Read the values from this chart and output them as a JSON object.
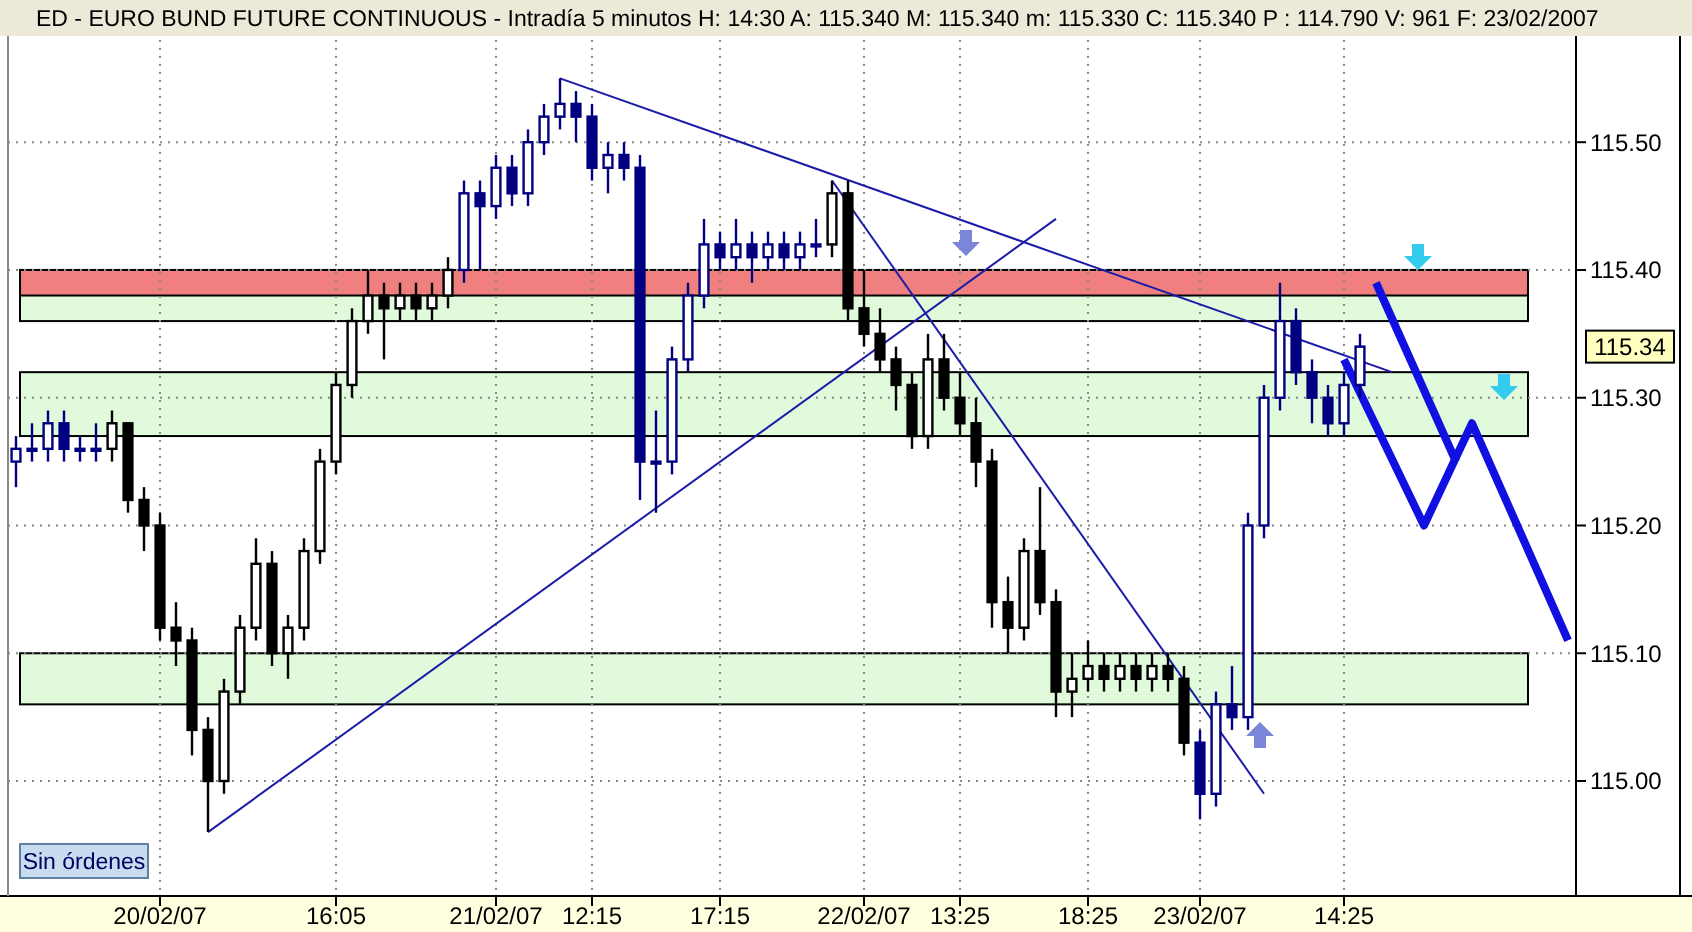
{
  "chart_data": {
    "type": "candlestick",
    "title": "ED - EURO BUND FUTURE CONTINUOUS - Intradía 5 minutos  H: 14:30  A: 115.340  M: 115.340  m: 115.330  C: 115.340  P : 114.790  V: 961  F: 23/02/2007",
    "categories": [
      null,
      null,
      null,
      null,
      null,
      null,
      null,
      null,
      null,
      "20/02/07",
      null,
      null,
      null,
      null,
      null,
      null,
      null,
      null,
      null,
      null,
      "16:05",
      null,
      null,
      null,
      null,
      null,
      null,
      null,
      null,
      null,
      "21/02/07",
      null,
      null,
      null,
      null,
      null,
      "12:15",
      null,
      null,
      null,
      null,
      null,
      null,
      null,
      "17:15",
      null,
      null,
      null,
      null,
      null,
      null,
      null,
      null,
      "22/02/07",
      null,
      null,
      null,
      null,
      null,
      "13:25",
      null,
      null,
      null,
      null,
      null,
      null,
      null,
      "18:25",
      null,
      null,
      null,
      null,
      null,
      null,
      "23/02/07",
      null,
      null,
      null,
      null,
      null,
      null,
      null,
      null,
      "14:25",
      null,
      null,
      null,
      null,
      null,
      null,
      null,
      null,
      null,
      null,
      null,
      null,
      null,
      null
    ],
    "ohlc": [
      [
        115.25,
        115.27,
        115.23,
        115.26
      ],
      [
        115.26,
        115.28,
        115.25,
        115.26
      ],
      [
        115.26,
        115.29,
        115.25,
        115.28
      ],
      [
        115.28,
        115.29,
        115.25,
        115.26
      ],
      [
        115.26,
        115.27,
        115.25,
        115.26
      ],
      [
        115.26,
        115.28,
        115.25,
        115.26
      ],
      [
        115.26,
        115.29,
        115.25,
        115.28
      ],
      [
        115.28,
        115.28,
        115.21,
        115.22
      ],
      [
        115.22,
        115.23,
        115.18,
        115.2
      ],
      [
        115.2,
        115.21,
        115.11,
        115.12
      ],
      [
        115.12,
        115.14,
        115.09,
        115.11
      ],
      [
        115.11,
        115.12,
        115.02,
        115.04
      ],
      [
        115.04,
        115.05,
        114.96,
        115
      ],
      [
        115,
        115.08,
        114.99,
        115.07
      ],
      [
        115.07,
        115.13,
        115.06,
        115.12
      ],
      [
        115.12,
        115.19,
        115.11,
        115.17
      ],
      [
        115.17,
        115.18,
        115.09,
        115.1
      ],
      [
        115.1,
        115.13,
        115.08,
        115.12
      ],
      [
        115.12,
        115.19,
        115.11,
        115.18
      ],
      [
        115.18,
        115.26,
        115.17,
        115.25
      ],
      [
        115.25,
        115.32,
        115.24,
        115.31
      ],
      [
        115.31,
        115.37,
        115.3,
        115.36
      ],
      [
        115.36,
        115.4,
        115.35,
        115.38
      ],
      [
        115.38,
        115.39,
        115.33,
        115.37
      ],
      [
        115.37,
        115.39,
        115.36,
        115.38
      ],
      [
        115.38,
        115.39,
        115.36,
        115.37
      ],
      [
        115.37,
        115.39,
        115.36,
        115.38
      ],
      [
        115.38,
        115.41,
        115.37,
        115.4
      ],
      [
        115.4,
        115.47,
        115.39,
        115.46
      ],
      [
        115.46,
        115.47,
        115.4,
        115.45
      ],
      [
        115.45,
        115.49,
        115.44,
        115.48
      ],
      [
        115.48,
        115.49,
        115.45,
        115.46
      ],
      [
        115.46,
        115.51,
        115.45,
        115.5
      ],
      [
        115.5,
        115.53,
        115.49,
        115.52
      ],
      [
        115.52,
        115.55,
        115.51,
        115.53
      ],
      [
        115.53,
        115.54,
        115.5,
        115.52
      ],
      [
        115.52,
        115.53,
        115.47,
        115.48
      ],
      [
        115.48,
        115.5,
        115.46,
        115.49
      ],
      [
        115.49,
        115.5,
        115.47,
        115.48
      ],
      [
        115.48,
        115.49,
        115.22,
        115.25
      ],
      [
        115.25,
        115.29,
        115.21,
        115.25
      ],
      [
        115.25,
        115.34,
        115.24,
        115.33
      ],
      [
        115.33,
        115.39,
        115.32,
        115.38
      ],
      [
        115.38,
        115.44,
        115.37,
        115.42
      ],
      [
        115.42,
        115.43,
        115.4,
        115.41
      ],
      [
        115.41,
        115.44,
        115.4,
        115.42
      ],
      [
        115.42,
        115.43,
        115.39,
        115.41
      ],
      [
        115.41,
        115.43,
        115.4,
        115.42
      ],
      [
        115.42,
        115.43,
        115.4,
        115.41
      ],
      [
        115.41,
        115.43,
        115.4,
        115.42
      ],
      [
        115.42,
        115.44,
        115.41,
        115.42
      ],
      [
        115.42,
        115.47,
        115.41,
        115.46
      ],
      [
        115.46,
        115.47,
        115.36,
        115.37
      ],
      [
        115.37,
        115.4,
        115.34,
        115.35
      ],
      [
        115.35,
        115.37,
        115.32,
        115.33
      ],
      [
        115.33,
        115.34,
        115.29,
        115.31
      ],
      [
        115.31,
        115.32,
        115.26,
        115.27
      ],
      [
        115.27,
        115.35,
        115.26,
        115.33
      ],
      [
        115.33,
        115.35,
        115.29,
        115.3
      ],
      [
        115.3,
        115.32,
        115.27,
        115.28
      ],
      [
        115.28,
        115.3,
        115.23,
        115.25
      ],
      [
        115.25,
        115.26,
        115.12,
        115.14
      ],
      [
        115.14,
        115.16,
        115.1,
        115.12
      ],
      [
        115.12,
        115.19,
        115.11,
        115.18
      ],
      [
        115.18,
        115.23,
        115.13,
        115.14
      ],
      [
        115.14,
        115.15,
        115.05,
        115.07
      ],
      [
        115.07,
        115.1,
        115.05,
        115.08
      ],
      [
        115.08,
        115.11,
        115.07,
        115.09
      ],
      [
        115.09,
        115.1,
        115.07,
        115.08
      ],
      [
        115.08,
        115.1,
        115.07,
        115.09
      ],
      [
        115.09,
        115.1,
        115.07,
        115.08
      ],
      [
        115.08,
        115.1,
        115.07,
        115.09
      ],
      [
        115.09,
        115.1,
        115.07,
        115.08
      ],
      [
        115.08,
        115.09,
        115.02,
        115.03
      ],
      [
        115.03,
        115.04,
        114.97,
        114.99
      ],
      [
        114.99,
        115.07,
        114.98,
        115.06
      ],
      [
        115.06,
        115.09,
        115.04,
        115.05
      ],
      [
        115.05,
        115.21,
        115.04,
        115.2
      ],
      [
        115.2,
        115.31,
        115.19,
        115.3
      ],
      [
        115.3,
        115.39,
        115.29,
        115.36
      ],
      [
        115.36,
        115.37,
        115.31,
        115.32
      ],
      [
        115.32,
        115.33,
        115.28,
        115.3
      ],
      [
        115.3,
        115.31,
        115.27,
        115.28
      ],
      [
        115.28,
        115.32,
        115.27,
        115.31
      ],
      [
        115.31,
        115.35,
        115.3,
        115.34
      ],
      null,
      null,
      null,
      null,
      null,
      null,
      null,
      null,
      null,
      null,
      null,
      null,
      null
    ],
    "colors": [
      "#000080",
      "#000080",
      "#000080",
      "#000080",
      "#000080",
      "#000080",
      "#000000",
      "#000000",
      "#000000",
      "#000000",
      "#000000",
      "#000000",
      "#000000",
      "#000000",
      "#000000",
      "#000000",
      "#000000",
      "#000000",
      "#000000",
      "#000000",
      "#000000",
      "#000000",
      "#000000",
      "#000000",
      "#000000",
      "#000000",
      "#000000",
      "#000000",
      "#000080",
      "#000080",
      "#000080",
      "#000080",
      "#000080",
      "#000080",
      "#000080",
      "#000080",
      "#000080",
      "#000080",
      "#000080",
      "#000080",
      "#000080",
      "#000080",
      "#000080",
      "#000080",
      "#000080",
      "#000080",
      "#000080",
      "#000080",
      "#000080",
      "#000080",
      "#000080",
      "#000000",
      "#000000",
      "#000000",
      "#000000",
      "#000000",
      "#000000",
      "#000000",
      "#000000",
      "#000000",
      "#000000",
      "#000000",
      "#000000",
      "#000000",
      "#000000",
      "#000000",
      "#000000",
      "#000000",
      "#000000",
      "#000000",
      "#000000",
      "#000000",
      "#000000",
      "#000000",
      "#000080",
      "#000080",
      "#000080",
      "#000080",
      "#000080",
      "#000080",
      "#000080",
      "#000080",
      "#000080",
      "#000080",
      "#000080",
      null,
      null,
      null,
      null,
      null,
      null,
      null,
      null,
      null,
      null,
      null,
      null,
      null
    ],
    "series": [
      {
        "type": "line",
        "values": [
          null,
          null,
          null,
          null,
          null,
          null,
          null,
          null,
          null,
          null,
          null,
          null,
          114.96,
          null,
          null,
          null,
          null,
          null,
          null,
          null,
          null,
          null,
          null,
          null,
          null,
          null,
          null,
          null,
          null,
          null,
          null,
          null,
          null,
          null,
          null,
          null,
          null,
          null,
          null,
          null,
          null,
          null,
          null,
          null,
          null,
          null,
          null,
          null,
          null,
          null,
          null,
          null,
          null,
          null,
          null,
          null,
          null,
          null,
          null,
          null,
          null,
          null,
          null,
          null,
          null,
          115.44,
          null,
          null,
          null,
          null,
          null,
          null,
          null,
          null,
          null,
          null,
          null,
          null,
          null,
          null,
          null,
          null,
          null,
          null,
          null,
          null,
          null,
          null,
          null,
          null,
          null,
          null,
          null,
          null,
          null,
          null,
          null,
          null
        ],
        "color": "#1c1ca8"
      },
      {
        "type": "line",
        "values": [
          null,
          null,
          null,
          null,
          null,
          null,
          null,
          null,
          null,
          null,
          null,
          null,
          null,
          null,
          null,
          null,
          null,
          null,
          null,
          null,
          null,
          null,
          null,
          null,
          null,
          null,
          null,
          null,
          null,
          null,
          null,
          null,
          null,
          null,
          115.55,
          null,
          null,
          null,
          null,
          null,
          null,
          null,
          null,
          null,
          null,
          null,
          null,
          null,
          null,
          null,
          null,
          null,
          null,
          null,
          null,
          null,
          null,
          null,
          null,
          null,
          null,
          null,
          null,
          null,
          null,
          null,
          null,
          null,
          null,
          null,
          null,
          null,
          null,
          null,
          null,
          null,
          null,
          null,
          null,
          null,
          null,
          null,
          null,
          null,
          null,
          null,
          115.32,
          null,
          null,
          null,
          null,
          null,
          null,
          null,
          null,
          null,
          null,
          null
        ],
        "color": "#1c1ca8"
      },
      {
        "type": "line",
        "values": [
          null,
          null,
          null,
          null,
          null,
          null,
          null,
          null,
          null,
          null,
          null,
          null,
          null,
          null,
          null,
          null,
          null,
          null,
          null,
          null,
          null,
          null,
          null,
          null,
          null,
          null,
          null,
          null,
          null,
          null,
          null,
          null,
          null,
          null,
          null,
          null,
          null,
          null,
          null,
          null,
          null,
          null,
          null,
          null,
          null,
          null,
          null,
          null,
          null,
          null,
          null,
          115.47,
          null,
          null,
          null,
          null,
          null,
          null,
          null,
          null,
          null,
          null,
          null,
          null,
          null,
          null,
          null,
          null,
          null,
          null,
          null,
          null,
          null,
          null,
          null,
          null,
          null,
          null,
          114.99,
          null,
          null,
          null,
          null,
          null,
          null,
          null,
          null,
          null,
          null,
          null,
          null,
          null,
          null,
          null,
          null,
          null,
          null,
          null
        ],
        "color": "#1c1ca8"
      },
      {
        "type": "line",
        "values": [
          null,
          null,
          null,
          null,
          null,
          null,
          null,
          null,
          null,
          null,
          null,
          null,
          null,
          null,
          null,
          null,
          null,
          null,
          null,
          null,
          null,
          null,
          null,
          null,
          null,
          null,
          null,
          null,
          null,
          null,
          null,
          null,
          null,
          null,
          null,
          null,
          null,
          null,
          null,
          null,
          null,
          null,
          null,
          null,
          null,
          null,
          null,
          null,
          null,
          null,
          null,
          null,
          null,
          null,
          null,
          null,
          null,
          null,
          null,
          null,
          null,
          null,
          null,
          null,
          null,
          null,
          null,
          null,
          null,
          null,
          null,
          null,
          null,
          null,
          null,
          null,
          null,
          null,
          null,
          null,
          null,
          null,
          null,
          115.33,
          null,
          null,
          null,
          null,
          115.2,
          null,
          null,
          115.28,
          null,
          null,
          null,
          null,
          null,
          115.11
        ],
        "color": "#1010e0"
      },
      {
        "type": "line",
        "values": [
          null,
          null,
          null,
          null,
          null,
          null,
          null,
          null,
          null,
          null,
          null,
          null,
          null,
          null,
          null,
          null,
          null,
          null,
          null,
          null,
          null,
          null,
          null,
          null,
          null,
          null,
          null,
          null,
          null,
          null,
          null,
          null,
          null,
          null,
          null,
          null,
          null,
          null,
          null,
          null,
          null,
          null,
          null,
          null,
          null,
          null,
          null,
          null,
          null,
          null,
          null,
          null,
          null,
          null,
          null,
          null,
          null,
          null,
          null,
          null,
          null,
          null,
          null,
          null,
          null,
          null,
          null,
          null,
          null,
          null,
          null,
          null,
          null,
          null,
          null,
          null,
          null,
          null,
          null,
          null,
          null,
          null,
          null,
          null,
          null,
          115.39,
          null,
          null,
          null,
          null,
          115.25,
          null,
          null,
          null,
          null,
          null,
          null,
          null
        ],
        "color": "#1010e0"
      }
    ],
    "bands": [
      {
        "axis": "y",
        "from": 115.36,
        "to": 115.4,
        "color": "#e2fadc"
      },
      {
        "axis": "y",
        "from": 115.27,
        "to": 115.32,
        "color": "#e2fadc"
      },
      {
        "axis": "y",
        "from": 115.06,
        "to": 115.1,
        "color": "#e2fadc"
      },
      {
        "axis": "y",
        "from": 115.38,
        "to": 115.4,
        "color": "#f08080"
      }
    ],
    "ylim": [
      114.91,
      115.58
    ],
    "yticks": [
      {
        "value": 115,
        "label": "115.00"
      },
      {
        "value": 115.1,
        "label": "115.10"
      },
      {
        "value": 115.2,
        "label": "115.20"
      },
      {
        "value": 115.3,
        "label": "115.30"
      },
      {
        "value": 115.4,
        "label": "115.40"
      },
      {
        "value": 115.5,
        "label": "115.50"
      }
    ],
    "grid": true,
    "line_style": "solid",
    "annotations": [
      "Sin órdenes",
      "115.34"
    ]
  }
}
